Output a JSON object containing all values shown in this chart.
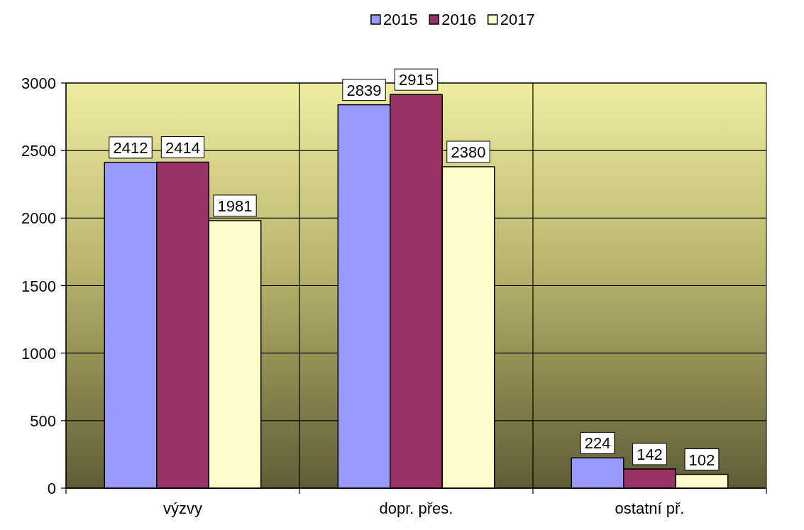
{
  "chart_data": {
    "type": "bar",
    "categories": [
      "výzvy",
      "dopr. přes.",
      "ostatní př."
    ],
    "series": [
      {
        "name": "2015",
        "color": "#9999ff",
        "values": [
          2412,
          2839,
          224
        ]
      },
      {
        "name": "2016",
        "color": "#993366",
        "values": [
          2414,
          2915,
          142
        ]
      },
      {
        "name": "2017",
        "color": "#ffffcc",
        "values": [
          1981,
          2380,
          102
        ]
      }
    ],
    "ylim": [
      0,
      3000
    ],
    "yticks": [
      0,
      500,
      1000,
      1500,
      2000,
      2500,
      3000
    ],
    "grid": true,
    "legend": "top",
    "data_labels": true
  }
}
